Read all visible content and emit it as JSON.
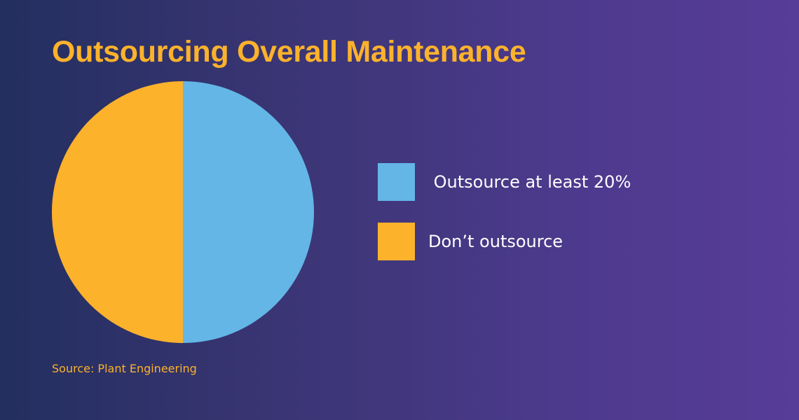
{
  "chart_data": {
    "type": "pie",
    "title": "Outsourcing Overall Maintenance",
    "source": "Source: Plant Engineering",
    "slices": [
      {
        "label": " Outsource at least 20%",
        "value": 50,
        "color": "#63b6e6"
      },
      {
        "label": "Don’t outsource",
        "value": 50,
        "color": "#fdb22b"
      }
    ],
    "legend_position": "right"
  },
  "colors": {
    "title": "#fdb22b",
    "source": "#fdb22b",
    "legend_text": "#ffffff"
  }
}
